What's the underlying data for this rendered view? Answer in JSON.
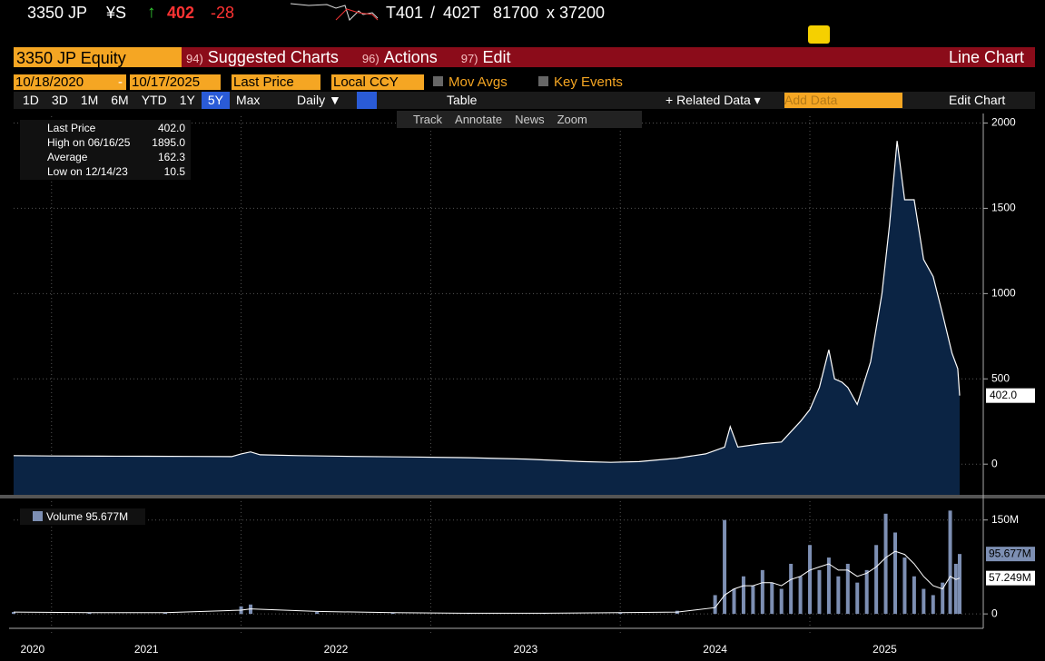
{
  "header": {
    "ticker": "3350 JP",
    "currency": "¥S",
    "arrow": "↑",
    "last": "402",
    "change": "-28",
    "bid": "T401",
    "slash": "/",
    "ask": "402T",
    "bid_size": "81700",
    "times": "x",
    "ask_size": "37200"
  },
  "menu": {
    "security": "3350 JP Equity",
    "items": [
      {
        "num": "94)",
        "label": "Suggested Charts"
      },
      {
        "num": "96)",
        "label": "Actions"
      },
      {
        "num": "97)",
        "label": "Edit"
      }
    ],
    "chart_type": "Line Chart"
  },
  "controls": {
    "start": "10/18/2020",
    "dash": "-",
    "end": "10/17/2025",
    "field": "Last Price",
    "ccy": "Local CCY",
    "mov_avgs": "Mov Avgs",
    "key_events": "Key Events"
  },
  "toolbar": {
    "periods": [
      "1D",
      "3D",
      "1M",
      "6M",
      "YTD",
      "1Y",
      "5Y",
      "Max"
    ],
    "active": 6,
    "frequency": "Daily ▼",
    "table": "Table",
    "related": "+ Related Data ▾",
    "add_data": "Add Data",
    "edit_chart": "Edit Chart"
  },
  "tools": [
    "Track",
    "Annotate",
    "News",
    "Zoom"
  ],
  "legend": [
    {
      "label": "Last Price",
      "value": "402.0"
    },
    {
      "label": "High on 06/16/25",
      "value": "1895.0"
    },
    {
      "label": "Average",
      "value": "162.3"
    },
    {
      "label": "Low on 12/14/23",
      "value": "10.5"
    }
  ],
  "chart_data": [
    {
      "type": "area",
      "name": "Last Price",
      "color": "#ffffff",
      "fill": "#0b2444",
      "xlim": [
        2020.8,
        2025.79
      ],
      "xticks": [
        2021,
        2022,
        2023,
        2024,
        2025
      ],
      "year_labels": [
        "2020",
        "2021",
        "2022",
        "2023",
        "2024",
        "2025"
      ],
      "ylim": [
        -180,
        2040
      ],
      "yticks": [
        0,
        500,
        1000,
        1500,
        2000
      ],
      "grid": true,
      "last_label": "402.0",
      "x": [
        2020.8,
        2021.0,
        2021.25,
        2021.5,
        2021.75,
        2021.95,
        2022.0,
        2022.05,
        2022.1,
        2022.3,
        2022.6,
        2022.9,
        2023.2,
        2023.5,
        2023.8,
        2023.95,
        2024.1,
        2024.3,
        2024.45,
        2024.55,
        2024.58,
        2024.62,
        2024.75,
        2024.85,
        2024.95,
        2025.0,
        2025.05,
        2025.1,
        2025.13,
        2025.17,
        2025.2,
        2025.25,
        2025.32,
        2025.38,
        2025.42,
        2025.46,
        2025.5,
        2025.55,
        2025.6,
        2025.65,
        2025.7,
        2025.75,
        2025.78,
        2025.79
      ],
      "values": [
        50,
        48,
        47,
        46,
        45,
        44,
        60,
        72,
        55,
        50,
        45,
        42,
        38,
        30,
        15,
        10.5,
        15,
        35,
        60,
        100,
        220,
        100,
        120,
        130,
        250,
        320,
        450,
        670,
        500,
        480,
        450,
        350,
        600,
        1000,
        1400,
        1895,
        1550,
        1550,
        1200,
        1100,
        880,
        650,
        560,
        402
      ]
    },
    {
      "type": "bar",
      "name": "Volume",
      "legend": "Volume 95.677M",
      "color": "#7d8fb3",
      "line_color": "#ffffff",
      "xlim": [
        2020.8,
        2025.79
      ],
      "ylim": [
        -23,
        180
      ],
      "yticks": [
        0,
        {
          "value": 150,
          "label": "150M"
        }
      ],
      "last_label": "95.677M",
      "ma_label": "57.249M",
      "x": [
        2020.8,
        2021.2,
        2021.6,
        2022.0,
        2022.05,
        2022.4,
        2022.8,
        2023.2,
        2023.6,
        2024.0,
        2024.3,
        2024.5,
        2024.55,
        2024.6,
        2024.65,
        2024.7,
        2024.75,
        2024.8,
        2024.85,
        2024.9,
        2024.95,
        2025.0,
        2025.05,
        2025.1,
        2025.15,
        2025.2,
        2025.25,
        2025.3,
        2025.35,
        2025.4,
        2025.45,
        2025.5,
        2025.55,
        2025.6,
        2025.65,
        2025.7,
        2025.74,
        2025.77,
        2025.79
      ],
      "values": [
        3,
        2,
        2,
        12,
        15,
        3,
        2,
        1,
        1,
        2,
        5,
        30,
        150,
        40,
        60,
        45,
        70,
        50,
        40,
        80,
        60,
        110,
        70,
        90,
        60,
        80,
        50,
        70,
        110,
        160,
        130,
        90,
        60,
        40,
        30,
        50,
        165,
        80,
        95.677
      ],
      "ma": [
        3,
        2,
        2,
        6,
        8,
        4,
        2,
        1,
        1,
        2,
        3,
        10,
        30,
        40,
        45,
        45,
        50,
        50,
        45,
        55,
        60,
        70,
        75,
        80,
        70,
        70,
        60,
        65,
        75,
        90,
        100,
        95,
        80,
        60,
        45,
        40,
        60,
        55,
        57.249
      ]
    }
  ]
}
